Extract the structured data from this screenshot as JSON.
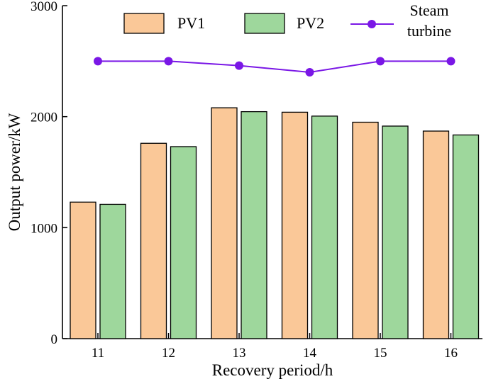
{
  "chart_data": {
    "type": "bar",
    "title": "",
    "xlabel": "Recovery period/h",
    "ylabel": "Output power/kW",
    "ylim": [
      0,
      3000
    ],
    "yticks": [
      0,
      1000,
      2000,
      3000
    ],
    "categories": [
      "11",
      "12",
      "13",
      "14",
      "15",
      "16"
    ],
    "series": [
      {
        "name": "PV1",
        "kind": "bar",
        "color": "#fac898",
        "values": [
          1230,
          1760,
          2080,
          2040,
          1950,
          1870
        ]
      },
      {
        "name": "PV2",
        "kind": "bar",
        "color": "#9ed79c",
        "values": [
          1210,
          1730,
          2045,
          2005,
          1915,
          1835
        ]
      },
      {
        "name": "Steam turbine",
        "label_lines": [
          "Steam",
          "turbine"
        ],
        "kind": "line",
        "color": "#7a17e6",
        "values": [
          2500,
          2500,
          2460,
          2400,
          2500,
          2500
        ]
      }
    ],
    "legend_position": "top",
    "grid": false
  }
}
